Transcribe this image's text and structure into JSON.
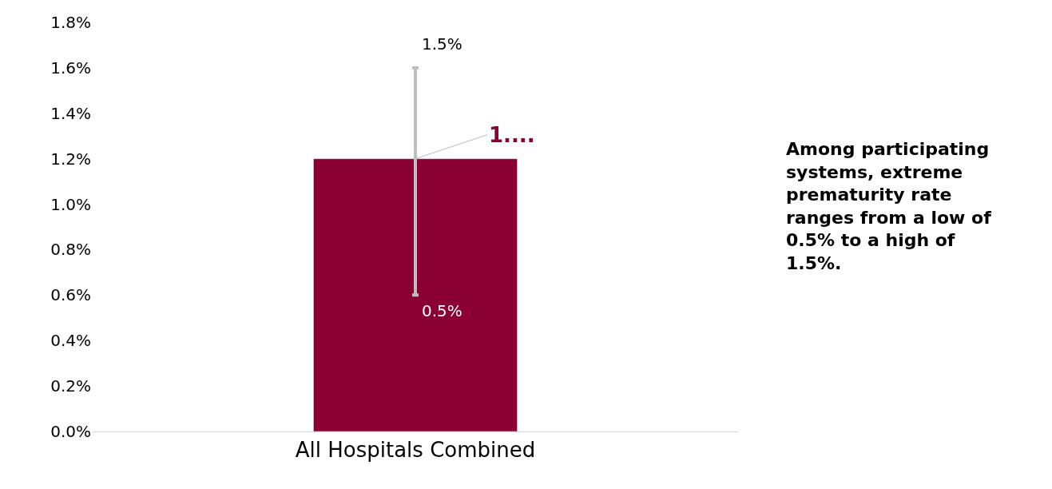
{
  "chart_data": {
    "type": "bar",
    "categories": [
      "All Hospitals Combined"
    ],
    "values": [
      1.2
    ],
    "color": "#8b0033",
    "errors": [
      [
        0.6,
        1.6
      ]
    ],
    "value_labels": [
      "1...."
    ],
    "ylim": [
      0,
      1.8
    ],
    "yticks": [
      {
        "value": 0,
        "label": "0.0%"
      },
      {
        "value": 0.2,
        "label": "0.2%"
      },
      {
        "value": 0.4,
        "label": "0.4%"
      },
      {
        "value": 0.6,
        "label": "0.6%"
      },
      {
        "value": 0.8,
        "label": "0.8%"
      },
      {
        "value": 1.0,
        "label": "1.0%"
      },
      {
        "value": 1.2,
        "label": "1.2%"
      },
      {
        "value": 1.4,
        "label": "1.4%"
      },
      {
        "value": 1.6,
        "label": "1.6%"
      },
      {
        "value": 1.8,
        "label": "1.8%"
      }
    ],
    "annotations": [
      {
        "text": "1.5%",
        "x": "All Hospitals Combined",
        "y": 1.6
      },
      {
        "text": "0.5%",
        "x": "All Hospitals Combined",
        "y": 0.6
      },
      "Among participating systems, extreme prematurity rate ranges from a low of 0.5% to a high of 1.5%."
    ]
  }
}
